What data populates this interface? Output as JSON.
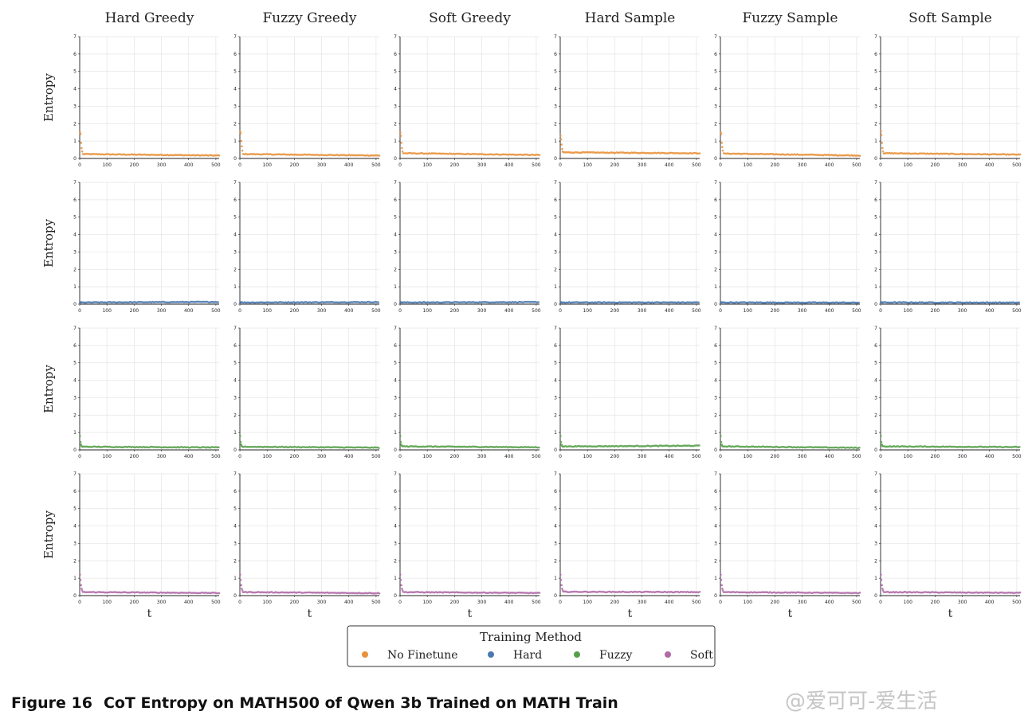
{
  "caption": {
    "number": "Figure 16",
    "text": "CoT Entropy on MATH500 of Qwen 3b Trained on MATH Train"
  },
  "watermark": "@爱可可-爱生活",
  "chart_data": {
    "type": "scatter",
    "columns": [
      "Hard Greedy",
      "Fuzzy Greedy",
      "Soft Greedy",
      "Hard Sample",
      "Fuzzy Sample",
      "Soft Sample"
    ],
    "rows": [
      "No Finetune",
      "Hard",
      "Fuzzy",
      "Soft"
    ],
    "ylabel": "Entropy",
    "xlabel": "t",
    "xlim": [
      0,
      512
    ],
    "ylim": [
      0,
      7
    ],
    "xticks": [
      0,
      100,
      200,
      300,
      400,
      500
    ],
    "yticks": [
      0,
      1,
      2,
      3,
      4,
      5,
      6,
      7
    ],
    "grid": true,
    "legend": {
      "title": "Training Method",
      "placement": "bottom-center",
      "entries": [
        {
          "name": "No Finetune",
          "color": "#e8913a"
        },
        {
          "name": "Hard",
          "color": "#4a78b0"
        },
        {
          "name": "Fuzzy",
          "color": "#56a04a"
        },
        {
          "name": "Soft",
          "color": "#b06aa8"
        }
      ]
    },
    "series": [
      {
        "row": "No Finetune",
        "color": "#e8913a",
        "panels": [
          {
            "column": "Hard Greedy",
            "spike": [
              1.5,
              1.4,
              0.9,
              0.6,
              0.4
            ],
            "plateau": 0.25,
            "end": 0.17
          },
          {
            "column": "Fuzzy Greedy",
            "spike": [
              1.55,
              1.45,
              1.0,
              0.7,
              0.45
            ],
            "plateau": 0.25,
            "end": 0.17
          },
          {
            "column": "Soft Greedy",
            "spike": [
              1.5,
              1.3,
              0.9,
              0.6,
              0.4
            ],
            "plateau": 0.3,
            "end": 0.2
          },
          {
            "column": "Hard Sample",
            "spike": [
              1.3,
              1.1,
              0.8,
              0.55,
              0.4
            ],
            "plateau": 0.35,
            "end": 0.3
          },
          {
            "column": "Fuzzy Sample",
            "spike": [
              1.5,
              1.4,
              0.9,
              0.65,
              0.45
            ],
            "plateau": 0.28,
            "end": 0.17
          },
          {
            "column": "Soft Sample",
            "spike": [
              1.55,
              1.35,
              0.9,
              0.6,
              0.4
            ],
            "plateau": 0.3,
            "end": 0.22
          }
        ]
      },
      {
        "row": "Hard",
        "color": "#4a78b0",
        "panels": [
          {
            "column": "Hard Greedy",
            "spike": [
              0.12,
              0.11,
              0.1
            ],
            "plateau": 0.1,
            "end": 0.13
          },
          {
            "column": "Fuzzy Greedy",
            "spike": [
              0.12,
              0.11,
              0.1
            ],
            "plateau": 0.1,
            "end": 0.12
          },
          {
            "column": "Soft Greedy",
            "spike": [
              0.12,
              0.11,
              0.1
            ],
            "plateau": 0.1,
            "end": 0.12
          },
          {
            "column": "Hard Sample",
            "spike": [
              0.12,
              0.11,
              0.1
            ],
            "plateau": 0.1,
            "end": 0.1
          },
          {
            "column": "Fuzzy Sample",
            "spike": [
              0.12,
              0.11,
              0.1
            ],
            "plateau": 0.1,
            "end": 0.09
          },
          {
            "column": "Soft Sample",
            "spike": [
              0.12,
              0.11,
              0.1
            ],
            "plateau": 0.1,
            "end": 0.09
          }
        ]
      },
      {
        "row": "Fuzzy",
        "color": "#56a04a",
        "panels": [
          {
            "column": "Hard Greedy",
            "spike": [
              0.8,
              0.45,
              0.3,
              0.22
            ],
            "plateau": 0.18,
            "end": 0.14
          },
          {
            "column": "Fuzzy Greedy",
            "spike": [
              0.8,
              0.45,
              0.3,
              0.22
            ],
            "plateau": 0.18,
            "end": 0.13
          },
          {
            "column": "Soft Greedy",
            "spike": [
              0.8,
              0.45,
              0.3,
              0.22
            ],
            "plateau": 0.2,
            "end": 0.15
          },
          {
            "column": "Hard Sample",
            "spike": [
              0.8,
              0.45,
              0.3,
              0.22
            ],
            "plateau": 0.2,
            "end": 0.24
          },
          {
            "column": "Fuzzy Sample",
            "spike": [
              0.8,
              0.45,
              0.3,
              0.22
            ],
            "plateau": 0.2,
            "end": 0.12
          },
          {
            "column": "Soft Sample",
            "spike": [
              0.8,
              0.45,
              0.3,
              0.22
            ],
            "plateau": 0.2,
            "end": 0.16
          }
        ]
      },
      {
        "row": "Soft",
        "color": "#b06aa8",
        "panels": [
          {
            "column": "Hard Greedy",
            "spike": [
              1.2,
              0.9,
              0.6,
              0.4,
              0.3
            ],
            "plateau": 0.2,
            "end": 0.15
          },
          {
            "column": "Fuzzy Greedy",
            "spike": [
              1.2,
              0.9,
              0.6,
              0.4,
              0.3
            ],
            "plateau": 0.2,
            "end": 0.14
          },
          {
            "column": "Soft Greedy",
            "spike": [
              1.2,
              0.9,
              0.6,
              0.4,
              0.3
            ],
            "plateau": 0.2,
            "end": 0.15
          },
          {
            "column": "Hard Sample",
            "spike": [
              1.2,
              0.9,
              0.6,
              0.4,
              0.3
            ],
            "plateau": 0.22,
            "end": 0.2
          },
          {
            "column": "Fuzzy Sample",
            "spike": [
              1.2,
              0.9,
              0.6,
              0.4,
              0.3
            ],
            "plateau": 0.2,
            "end": 0.15
          },
          {
            "column": "Soft Sample",
            "spike": [
              1.2,
              0.9,
              0.6,
              0.4,
              0.3
            ],
            "plateau": 0.2,
            "end": 0.16
          }
        ]
      }
    ]
  }
}
